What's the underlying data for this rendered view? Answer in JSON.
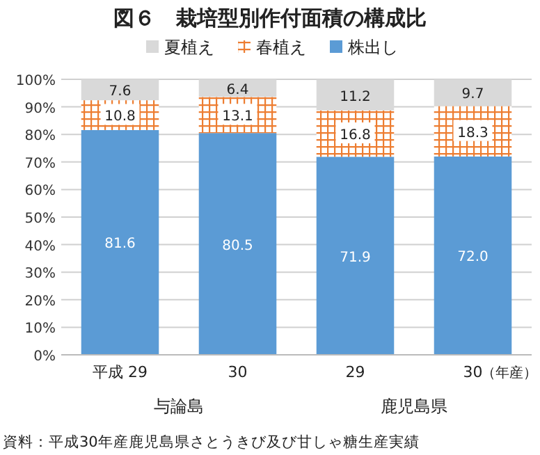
{
  "chart_data": {
    "type": "bar",
    "stacked": true,
    "title": "図６　栽培型別作付面積の構成比",
    "categories": [
      "平成 29",
      "30",
      "29",
      "30"
    ],
    "xlabel": "（年産）",
    "series": [
      {
        "name": "株出し",
        "color": "#5b9bd5",
        "values": [
          81.6,
          80.5,
          71.9,
          72.0
        ],
        "value_labels": [
          "81.6",
          "80.5",
          "71.9",
          "72.0"
        ]
      },
      {
        "name": "春植え",
        "color": "#ed7d31",
        "values": [
          10.8,
          13.1,
          16.8,
          18.3
        ],
        "value_labels": [
          "10.8",
          "13.1",
          "16.8",
          "18.3"
        ]
      },
      {
        "name": "夏植え",
        "color": "#d9d9d9",
        "values": [
          7.6,
          6.4,
          11.2,
          9.7
        ],
        "value_labels": [
          "7.6",
          "6.4",
          "11.2",
          "9.7"
        ]
      }
    ],
    "ylim": [
      0,
      100
    ],
    "yticks": [
      {
        "value": 0,
        "label": "0%"
      },
      {
        "value": 10,
        "label": "10%"
      },
      {
        "value": 20,
        "label": "20%"
      },
      {
        "value": 30,
        "label": "30%"
      },
      {
        "value": 40,
        "label": "40%"
      },
      {
        "value": 50,
        "label": "50%"
      },
      {
        "value": 60,
        "label": "60%"
      },
      {
        "value": 70,
        "label": "70%"
      },
      {
        "value": 80,
        "label": "80%"
      },
      {
        "value": 90,
        "label": "90%"
      },
      {
        "value": 100,
        "label": "100%"
      }
    ],
    "grid": "y",
    "legend": "top",
    "annotations": [
      "与論島",
      "鹿児島県",
      "資料：平成30年産鹿児島県さとうきび及び甘しゃ糖生産実績"
    ]
  }
}
